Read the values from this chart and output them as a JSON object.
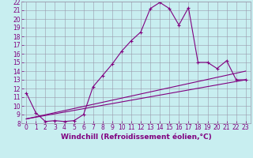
{
  "xlabel": "Windchill (Refroidissement éolien,°C)",
  "background_color": "#c8eef0",
  "line_color": "#800080",
  "grid_color": "#9999aa",
  "xlim": [
    -0.5,
    23.5
  ],
  "ylim": [
    8,
    22
  ],
  "xticks": [
    0,
    1,
    2,
    3,
    4,
    5,
    6,
    7,
    8,
    9,
    10,
    11,
    12,
    13,
    14,
    15,
    16,
    17,
    18,
    19,
    20,
    21,
    22,
    23
  ],
  "yticks": [
    8,
    9,
    10,
    11,
    12,
    13,
    14,
    15,
    16,
    17,
    18,
    19,
    20,
    21,
    22
  ],
  "line1_x": [
    0,
    1,
    2,
    3,
    4,
    5,
    6,
    7,
    8,
    9,
    10,
    11,
    12,
    13,
    14,
    15,
    16,
    17,
    18,
    19,
    20,
    21,
    22,
    23
  ],
  "line1_y": [
    11.5,
    9.2,
    8.2,
    8.3,
    8.2,
    8.3,
    9.0,
    12.2,
    13.5,
    14.8,
    16.3,
    17.5,
    18.5,
    21.2,
    21.9,
    21.2,
    19.3,
    21.3,
    15.0,
    15.0,
    14.3,
    15.2,
    13.0,
    13.0
  ],
  "line2_x": [
    0,
    23
  ],
  "line2_y": [
    8.5,
    13.0
  ],
  "line3_x": [
    0,
    23
  ],
  "line3_y": [
    8.5,
    14.0
  ],
  "font_color": "#800080",
  "tick_fontsize": 5.5,
  "xlabel_fontsize": 6.5
}
